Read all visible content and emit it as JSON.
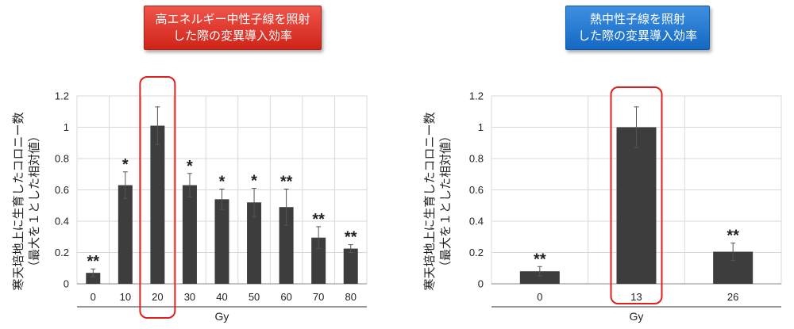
{
  "left_title": [
    "高エネルギー中性子線を照射",
    "した際の変異導入効率"
  ],
  "right_title": [
    "熱中性子線を照射",
    "した際の変異導入効率"
  ],
  "chart_data": [
    {
      "type": "bar",
      "categories": [
        "0",
        "10",
        "20",
        "30",
        "40",
        "50",
        "60",
        "70",
        "80"
      ],
      "values": [
        0.07,
        0.63,
        1.01,
        0.63,
        0.54,
        0.52,
        0.49,
        0.295,
        0.225
      ],
      "errors": [
        0.025,
        0.085,
        0.12,
        0.075,
        0.065,
        0.09,
        0.115,
        0.07,
        0.025
      ],
      "significance": [
        "**",
        "*",
        "",
        "*",
        "*",
        "*",
        "**",
        "**",
        "**"
      ],
      "highlight_index": 2,
      "ylabel": [
        "寒天培地上に生育したコロニー数",
        "（最大を１とした相対値）"
      ],
      "xlabel": "Gy",
      "ylim": [
        0,
        1.2
      ],
      "yticks": [
        "0",
        "0.2",
        "0.4",
        "0.6",
        "0.8",
        "1",
        "1.2"
      ],
      "grid": true,
      "bar_color": "#3d3d3d",
      "highlight_color": "#e02020"
    },
    {
      "type": "bar",
      "categories": [
        "0",
        "13",
        "26"
      ],
      "values": [
        0.08,
        1.0,
        0.205
      ],
      "errors": [
        0.03,
        0.13,
        0.055
      ],
      "significance": [
        "**",
        "",
        "**"
      ],
      "highlight_index": 1,
      "ylabel": [
        "寒天培地上に生育したコロニー数",
        "（最大を１とした相対値）"
      ],
      "xlabel": "Gy",
      "ylim": [
        0,
        1.2
      ],
      "yticks": [
        "0",
        "0.2",
        "0.4",
        "0.6",
        "0.8",
        "1",
        "1.2"
      ],
      "grid": true,
      "bar_color": "#3d3d3d",
      "highlight_color": "#e02020"
    }
  ]
}
